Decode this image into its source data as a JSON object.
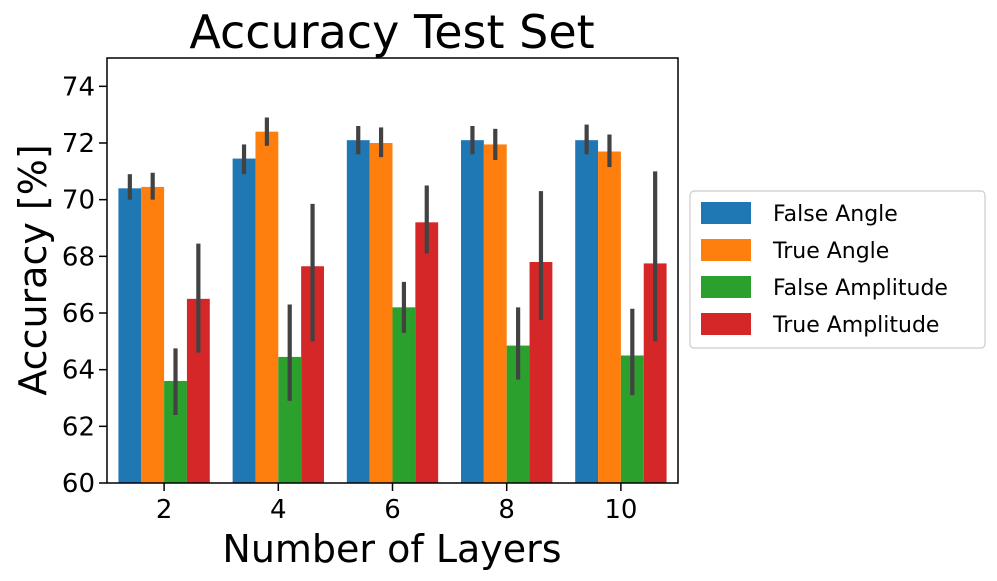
{
  "chart_data": {
    "type": "bar",
    "title": "Accuracy Test Set",
    "xlabel": "Number of Layers",
    "ylabel": "Accuracy [%]",
    "categories": [
      "2",
      "4",
      "6",
      "8",
      "10"
    ],
    "ylim": [
      60,
      75
    ],
    "yticks": [
      "60",
      "62",
      "64",
      "66",
      "68",
      "70",
      "72",
      "74"
    ],
    "grid": false,
    "legend_position": "right",
    "series": [
      {
        "name": "False Angle",
        "color": "#1f77b4",
        "values": [
          70.4,
          71.45,
          72.1,
          72.1,
          72.1
        ],
        "err_low": [
          70.0,
          70.9,
          71.6,
          71.6,
          71.6
        ],
        "err_high": [
          70.9,
          71.95,
          72.6,
          72.6,
          72.65
        ]
      },
      {
        "name": "True Angle",
        "color": "#ff7f0e",
        "values": [
          70.45,
          72.4,
          72.0,
          71.95,
          71.7
        ],
        "err_low": [
          70.0,
          71.9,
          71.5,
          71.4,
          71.15
        ],
        "err_high": [
          70.95,
          72.9,
          72.55,
          72.5,
          72.3
        ]
      },
      {
        "name": "False Amplitude",
        "color": "#2ca02c",
        "values": [
          63.6,
          64.45,
          66.2,
          64.85,
          64.5
        ],
        "err_low": [
          62.4,
          62.9,
          65.3,
          63.65,
          63.1
        ],
        "err_high": [
          64.75,
          66.3,
          67.1,
          66.2,
          66.15
        ]
      },
      {
        "name": "True Amplitude",
        "color": "#d62728",
        "values": [
          66.5,
          67.65,
          69.2,
          67.8,
          67.75
        ],
        "err_low": [
          64.6,
          65.0,
          68.1,
          65.75,
          65.0
        ],
        "err_high": [
          68.45,
          69.85,
          70.5,
          70.3,
          71.0
        ]
      }
    ]
  }
}
